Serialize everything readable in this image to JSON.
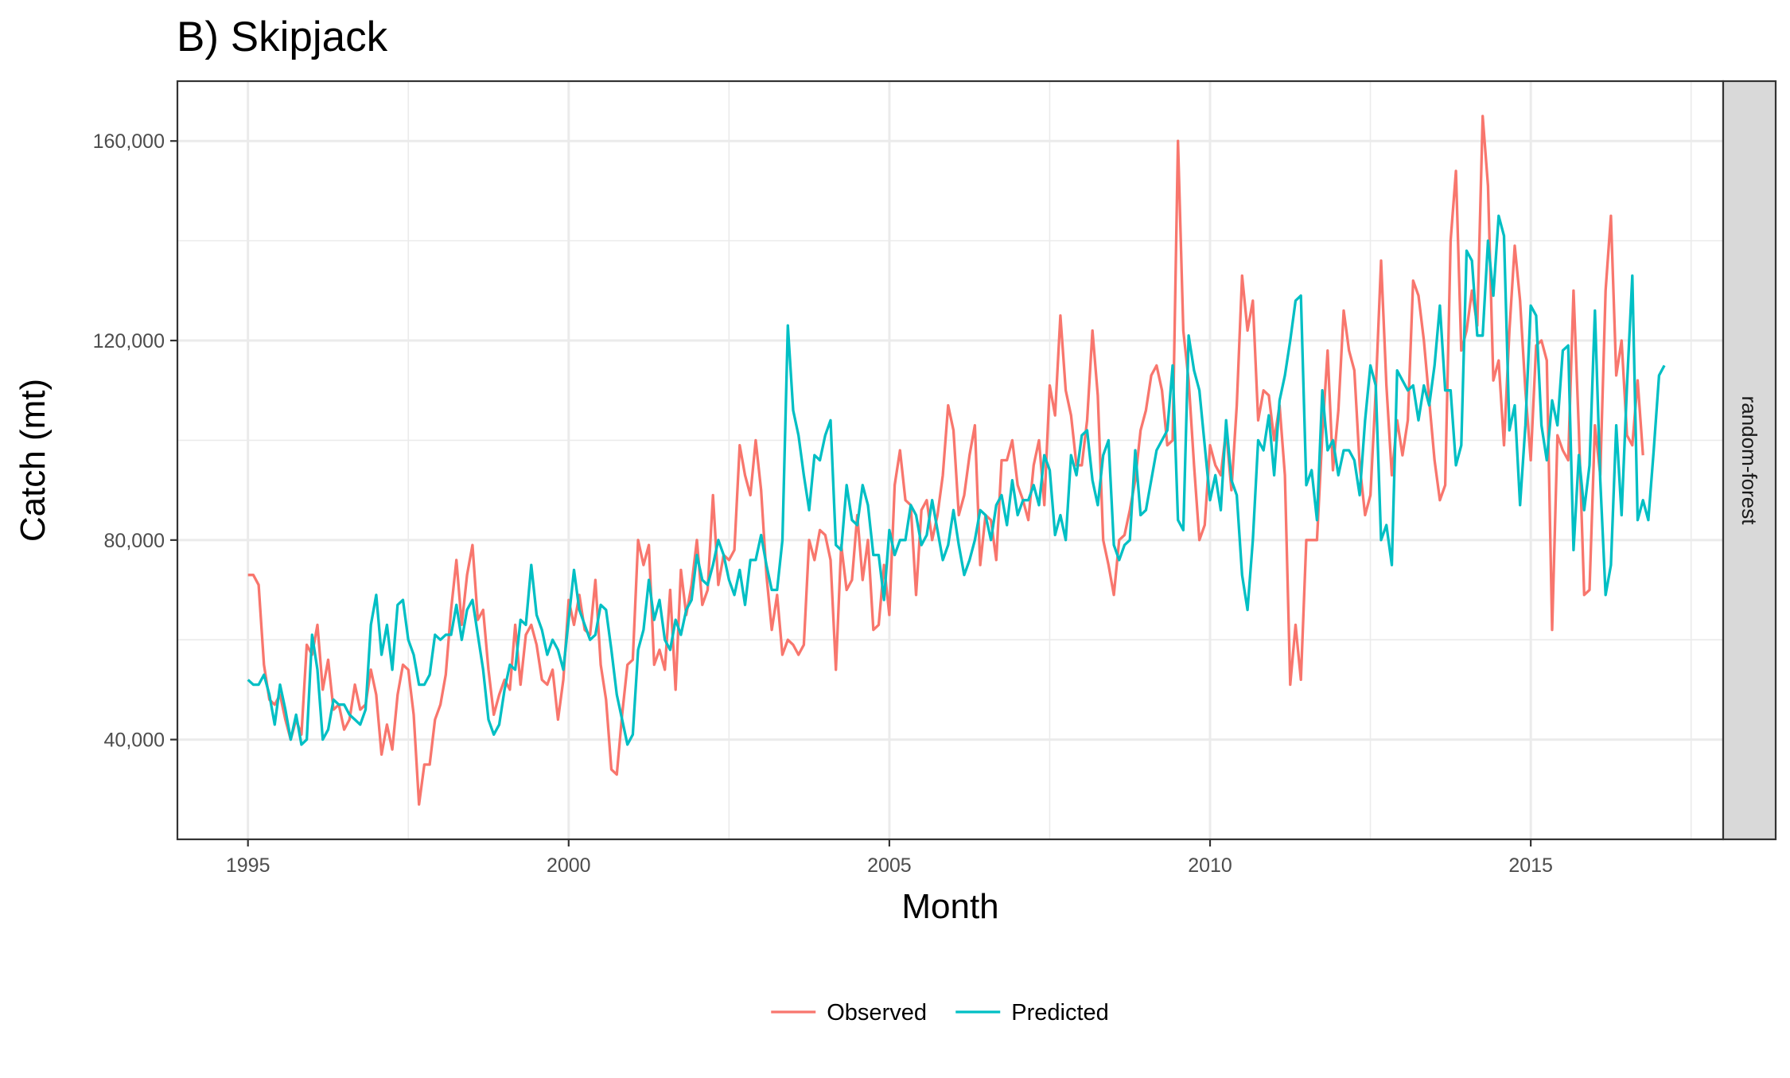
{
  "chart_data": {
    "type": "line",
    "title": "B) Skipjack",
    "xlabel": "Month",
    "ylabel": "Catch (mt)",
    "facet_label": "random-forest",
    "xlim": [
      1993.9,
      2018.0
    ],
    "ylim": [
      20000,
      172000
    ],
    "x_ticks": [
      1995,
      2000,
      2005,
      2010,
      2015
    ],
    "x_tick_labels": [
      "1995",
      "2000",
      "2005",
      "2010",
      "2015"
    ],
    "y_ticks": [
      40000,
      80000,
      120000,
      160000
    ],
    "y_tick_labels": [
      "40,000",
      "80,000",
      "120,000",
      "160,000"
    ],
    "grid": true,
    "legend_position": "bottom",
    "x_start": 1995.0,
    "x_step_months": 1,
    "series": [
      {
        "name": "Observed",
        "color": "#F8766D",
        "values": [
          73000,
          73000,
          71000,
          55000,
          48000,
          47000,
          49000,
          44000,
          40000,
          44000,
          41000,
          59000,
          57000,
          63000,
          50000,
          56000,
          46000,
          47000,
          42000,
          44000,
          51000,
          46000,
          47000,
          54000,
          49000,
          37000,
          43000,
          38000,
          49000,
          55000,
          54000,
          45000,
          27000,
          35000,
          35000,
          44000,
          47000,
          53000,
          66000,
          76000,
          63000,
          73000,
          79000,
          64000,
          66000,
          54000,
          45000,
          49000,
          52000,
          50000,
          63000,
          51000,
          61000,
          63000,
          59000,
          52000,
          51000,
          54000,
          44000,
          52000,
          68000,
          63000,
          69000,
          62000,
          61000,
          72000,
          55000,
          48000,
          34000,
          33000,
          45000,
          55000,
          56000,
          80000,
          75000,
          79000,
          55000,
          58000,
          54000,
          70000,
          50000,
          74000,
          65000,
          71000,
          80000,
          67000,
          70000,
          89000,
          71000,
          77000,
          76000,
          78000,
          99000,
          93000,
          89000,
          100000,
          90000,
          73000,
          62000,
          69000,
          57000,
          60000,
          59000,
          57000,
          59000,
          80000,
          76000,
          82000,
          81000,
          76000,
          54000,
          79000,
          70000,
          72000,
          85000,
          72000,
          80000,
          62000,
          63000,
          75000,
          65000,
          91000,
          98000,
          88000,
          87000,
          69000,
          86000,
          88000,
          80000,
          85000,
          93000,
          107000,
          102000,
          85000,
          89000,
          97000,
          103000,
          75000,
          85000,
          84000,
          76000,
          96000,
          96000,
          100000,
          91000,
          88000,
          84000,
          95000,
          100000,
          87000,
          111000,
          105000,
          125000,
          110000,
          105000,
          95000,
          95000,
          104000,
          122000,
          109000,
          80000,
          75000,
          69000,
          80000,
          81000,
          86000,
          92000,
          102000,
          106000,
          113000,
          115000,
          110000,
          99000,
          100000,
          160000,
          122000,
          112000,
          95000,
          80000,
          83000,
          99000,
          95000,
          93000,
          102000,
          90000,
          107000,
          133000,
          122000,
          128000,
          104000,
          110000,
          109000,
          100000,
          107000,
          93000,
          51000,
          63000,
          52000,
          80000,
          80000,
          80000,
          101000,
          118000,
          94000,
          106000,
          126000,
          118000,
          114000,
          95000,
          85000,
          89000,
          110000,
          136000,
          111000,
          93000,
          104000,
          97000,
          104000,
          132000,
          129000,
          120000,
          108000,
          96000,
          88000,
          91000,
          140000,
          154000,
          118000,
          122000,
          130000,
          123000,
          165000,
          151000,
          112000,
          116000,
          99000,
          122000,
          139000,
          128000,
          110000,
          96000,
          119000,
          120000,
          116000,
          62000,
          101000,
          98000,
          96000,
          130000,
          102000,
          69000,
          70000,
          103000,
          93000,
          130000,
          145000,
          113000,
          120000,
          101000,
          99000,
          112000,
          97000
        ]
      },
      {
        "name": "Predicted",
        "color": "#00BFC4",
        "values": [
          52000,
          51000,
          51000,
          53000,
          49000,
          43000,
          51000,
          46000,
          40000,
          45000,
          39000,
          40000,
          61000,
          54000,
          40000,
          42000,
          48000,
          47000,
          47000,
          45000,
          44000,
          43000,
          46000,
          63000,
          69000,
          57000,
          63000,
          54000,
          67000,
          68000,
          60000,
          57000,
          51000,
          51000,
          53000,
          61000,
          60000,
          61000,
          61000,
          67000,
          60000,
          66000,
          68000,
          61000,
          54000,
          44000,
          41000,
          43000,
          50000,
          55000,
          54000,
          64000,
          63000,
          75000,
          65000,
          62000,
          57000,
          60000,
          58000,
          54000,
          64000,
          74000,
          66000,
          63000,
          60000,
          61000,
          67000,
          66000,
          58000,
          49000,
          44000,
          39000,
          41000,
          58000,
          62000,
          72000,
          64000,
          68000,
          60000,
          58000,
          64000,
          61000,
          66000,
          68000,
          77000,
          72000,
          71000,
          75000,
          80000,
          77000,
          72000,
          69000,
          74000,
          67000,
          76000,
          76000,
          81000,
          75000,
          70000,
          70000,
          80000,
          123000,
          106000,
          101000,
          93000,
          86000,
          97000,
          96000,
          101000,
          104000,
          79000,
          78000,
          91000,
          84000,
          83000,
          91000,
          87000,
          77000,
          77000,
          68000,
          82000,
          77000,
          80000,
          80000,
          87000,
          85000,
          79000,
          81000,
          88000,
          82000,
          76000,
          79000,
          86000,
          79000,
          73000,
          76000,
          80000,
          86000,
          85000,
          80000,
          87000,
          89000,
          83000,
          92000,
          85000,
          88000,
          88000,
          91000,
          87000,
          97000,
          94000,
          81000,
          85000,
          80000,
          97000,
          93000,
          101000,
          102000,
          92000,
          87000,
          97000,
          100000,
          79000,
          76000,
          79000,
          80000,
          98000,
          85000,
          86000,
          92000,
          98000,
          100000,
          102000,
          115000,
          84000,
          82000,
          121000,
          114000,
          110000,
          99000,
          88000,
          93000,
          86000,
          104000,
          92000,
          89000,
          73000,
          66000,
          80000,
          100000,
          98000,
          105000,
          93000,
          108000,
          113000,
          120000,
          128000,
          129000,
          91000,
          94000,
          84000,
          110000,
          98000,
          100000,
          93000,
          98000,
          98000,
          96000,
          89000,
          104000,
          115000,
          111000,
          80000,
          83000,
          75000,
          114000,
          112000,
          110000,
          111000,
          104000,
          111000,
          107000,
          115000,
          127000,
          110000,
          110000,
          95000,
          99000,
          138000,
          136000,
          121000,
          121000,
          140000,
          129000,
          145000,
          141000,
          102000,
          107000,
          87000,
          103000,
          127000,
          125000,
          103000,
          96000,
          108000,
          103000,
          118000,
          119000,
          78000,
          97000,
          86000,
          95000,
          126000,
          92000,
          69000,
          75000,
          103000,
          85000,
          111000,
          133000,
          84000,
          88000,
          84000,
          98000,
          113000,
          115000
        ]
      }
    ]
  }
}
